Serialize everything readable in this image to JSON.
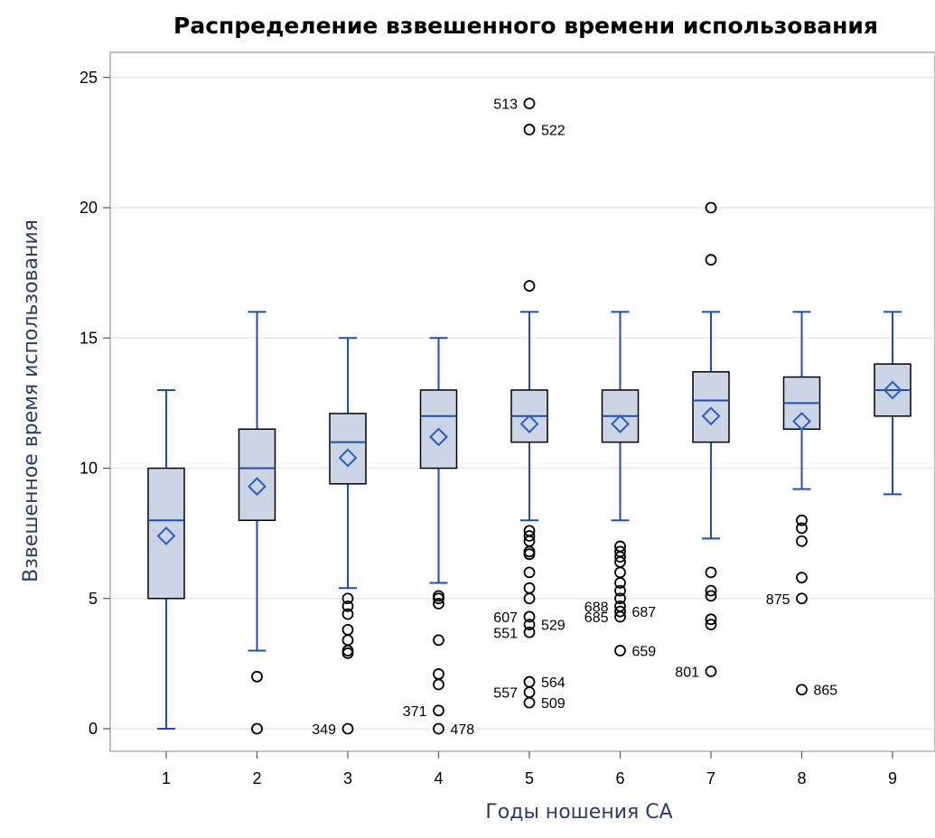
{
  "chart_data": {
    "type": "box",
    "title": "Распределение взвешенного времени использования",
    "xlabel": "Годы ношения СА",
    "ylabel": "Взвешенное время использования",
    "categories": [
      "1",
      "2",
      "3",
      "4",
      "5",
      "6",
      "7",
      "8",
      "9"
    ],
    "y_ticks": [
      "0",
      "5",
      "10",
      "15",
      "20",
      "25"
    ],
    "ylim": [
      -0.8,
      25.8
    ],
    "grid": "horizontal",
    "box_fill": "#cbd5e6",
    "box_edge": "#000000",
    "whisker_color": "#1f4fa8",
    "median_color": "#1f4fa8",
    "mean_marker_color": "#2a5cc4",
    "outlier_color": "#000000",
    "boxes": [
      {
        "category": "1",
        "min": 0,
        "q1": 5,
        "median": 8,
        "q3": 10,
        "max": 13,
        "mean": 7.4,
        "outliers": []
      },
      {
        "category": "2",
        "min": 3,
        "q1": 8,
        "median": 10,
        "q3": 11.5,
        "max": 16,
        "mean": 9.3,
        "outliers": [
          {
            "y": 2
          },
          {
            "y": 0
          }
        ]
      },
      {
        "category": "3",
        "min": 5.4,
        "q1": 9.4,
        "median": 11,
        "q3": 12.1,
        "max": 15,
        "mean": 10.4,
        "outliers": [
          {
            "y": 5
          },
          {
            "y": 4.7
          },
          {
            "y": 4.4
          },
          {
            "y": 3.8
          },
          {
            "y": 3.4
          },
          {
            "y": 3.0
          },
          {
            "y": 2.9
          },
          {
            "y": 0,
            "label": "349",
            "side": "left"
          }
        ]
      },
      {
        "category": "4",
        "min": 5.6,
        "q1": 10,
        "median": 12,
        "q3": 13,
        "max": 15,
        "mean": 11.2,
        "outliers": [
          {
            "y": 5.1
          },
          {
            "y": 5.0
          },
          {
            "y": 4.8
          },
          {
            "y": 3.4
          },
          {
            "y": 2.1
          },
          {
            "y": 1.7
          },
          {
            "y": 0.7,
            "label": "371",
            "side": "left"
          },
          {
            "y": 0,
            "label": "478",
            "side": "right"
          }
        ]
      },
      {
        "category": "5",
        "min": 8,
        "q1": 11,
        "median": 12,
        "q3": 13,
        "max": 16,
        "mean": 11.7,
        "outliers": [
          {
            "y": 24,
            "label": "513",
            "side": "left"
          },
          {
            "y": 23,
            "label": "522",
            "side": "right"
          },
          {
            "y": 17
          },
          {
            "y": 7.6
          },
          {
            "y": 7.4
          },
          {
            "y": 7.2
          },
          {
            "y": 6.8
          },
          {
            "y": 6.7
          },
          {
            "y": 6.0
          },
          {
            "y": 5.4
          },
          {
            "y": 5.0
          },
          {
            "y": 4.3,
            "label": "607",
            "side": "left"
          },
          {
            "y": 4.0,
            "label": "529",
            "side": "right"
          },
          {
            "y": 3.7,
            "label": "551",
            "side": "left"
          },
          {
            "y": 1.8,
            "label": "564",
            "side": "right"
          },
          {
            "y": 1.4,
            "label": "557",
            "side": "left"
          },
          {
            "y": 1.0,
            "label": "509",
            "side": "right"
          }
        ]
      },
      {
        "category": "6",
        "min": 8,
        "q1": 11,
        "median": 12,
        "q3": 13,
        "max": 16,
        "mean": 11.7,
        "outliers": [
          {
            "y": 7.0
          },
          {
            "y": 6.8
          },
          {
            "y": 6.6
          },
          {
            "y": 6.4
          },
          {
            "y": 6.0
          },
          {
            "y": 5.6
          },
          {
            "y": 5.3
          },
          {
            "y": 5.0
          },
          {
            "y": 4.7,
            "label": "688",
            "side": "left"
          },
          {
            "y": 4.5,
            "label": "687",
            "side": "right"
          },
          {
            "y": 4.3,
            "label": "685",
            "side": "left"
          },
          {
            "y": 3.0,
            "label": "659",
            "side": "right"
          }
        ]
      },
      {
        "category": "7",
        "min": 7.3,
        "q1": 11,
        "median": 12.6,
        "q3": 13.7,
        "max": 16,
        "mean": 12.0,
        "outliers": [
          {
            "y": 20
          },
          {
            "y": 18
          },
          {
            "y": 6.0
          },
          {
            "y": 5.3
          },
          {
            "y": 5.1
          },
          {
            "y": 4.2
          },
          {
            "y": 4.0
          },
          {
            "y": 2.2,
            "label": "801",
            "side": "left"
          }
        ]
      },
      {
        "category": "8",
        "min": 9.2,
        "q1": 11.5,
        "median": 12.5,
        "q3": 13.5,
        "max": 16,
        "mean": 11.8,
        "outliers": [
          {
            "y": 8.0
          },
          {
            "y": 7.7
          },
          {
            "y": 7.2
          },
          {
            "y": 5.8
          },
          {
            "y": 5.0,
            "label": "875",
            "side": "left"
          },
          {
            "y": 1.5,
            "label": "865",
            "side": "right"
          }
        ]
      },
      {
        "category": "9",
        "min": 9.0,
        "q1": 12,
        "median": 13,
        "q3": 14,
        "max": 16,
        "mean": 13.0,
        "outliers": []
      }
    ]
  }
}
